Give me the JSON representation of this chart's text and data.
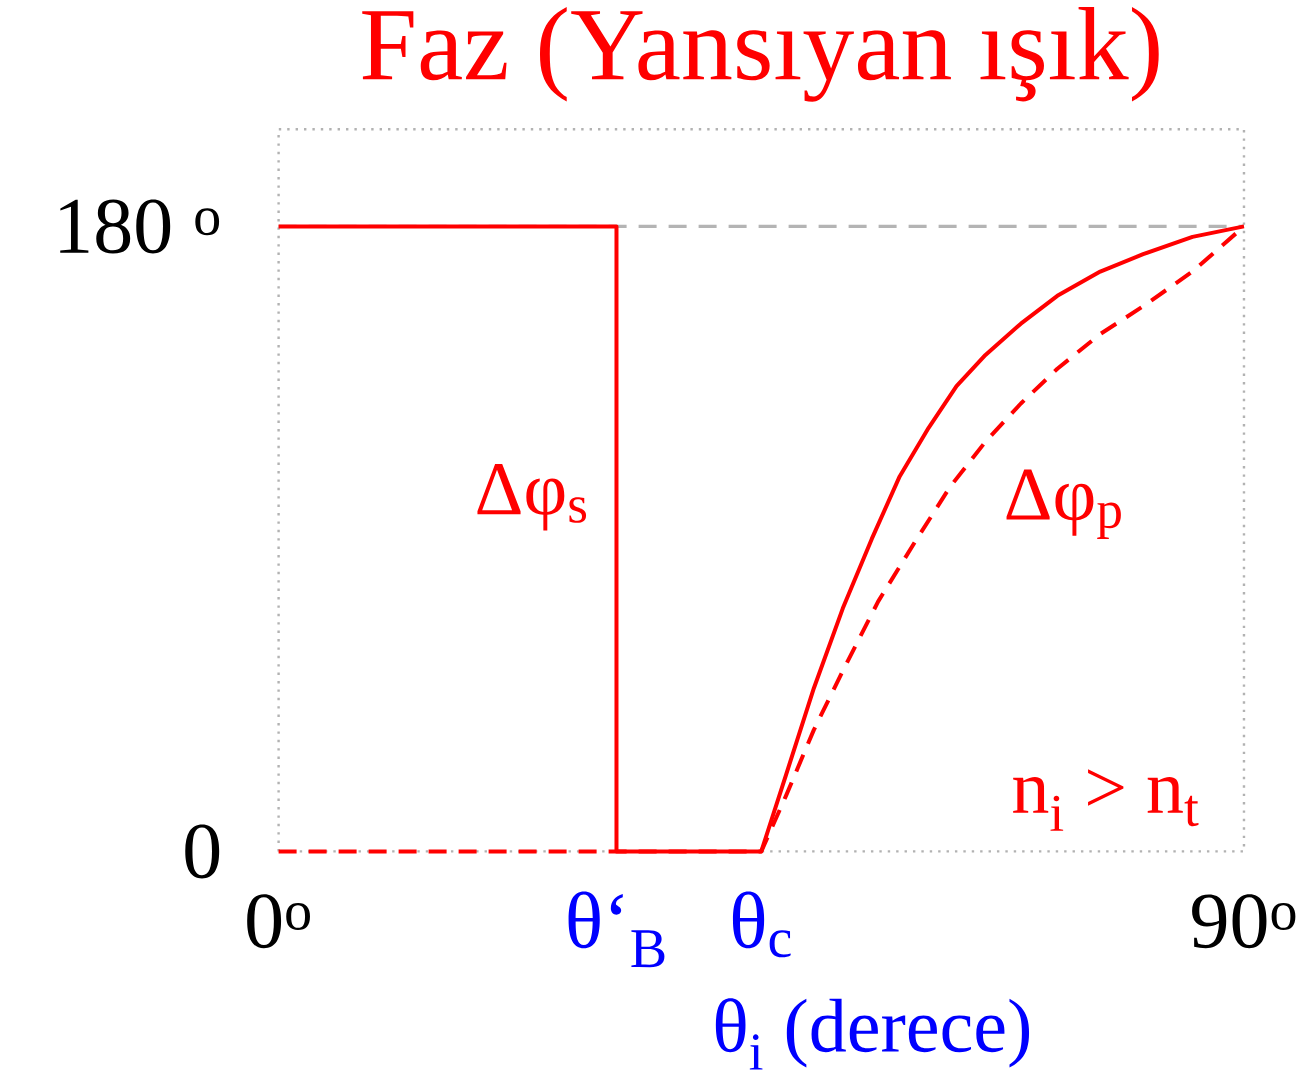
{
  "chart_data": {
    "type": "line",
    "title": "Faz (Yansıyan ışık)",
    "xlabel": "θ$_{i}$ (derece)",
    "xlim": [
      0,
      90
    ],
    "ylim": [
      0,
      208
    ],
    "xticks": [
      {
        "value": 0,
        "label": "0$^{o}$"
      },
      {
        "value": 31.5,
        "label": "θ‘$_{B}$"
      },
      {
        "value": 45,
        "label": "θ$_{c}$"
      },
      {
        "value": 90,
        "label": "90$^{o}$"
      }
    ],
    "yticks": [
      0,
      {
        "value": 180,
        "label": "180 $^{o}$"
      }
    ],
    "series": [
      {
        "color": "#ff0000",
        "line_style": "dashed",
        "x": [
          0,
          45,
          47.3,
          49.9,
          52.6,
          55.9,
          59.3,
          62.6,
          65.9,
          69.2,
          72.6,
          76.6,
          80.6,
          85.2,
          90
        ],
        "values": [
          0,
          0,
          16,
          35,
          52,
          72,
          89,
          105,
          118,
          129,
          139,
          149,
          157,
          167,
          180
        ]
      },
      {
        "color": "#ff0000",
        "line_style": "solid",
        "x": [
          0,
          31.5,
          31.5,
          45,
          47.3,
          49.9,
          52.6,
          55.3,
          57.9,
          60.6,
          63.2,
          65.9,
          69.2,
          72.6,
          76.6,
          80.6,
          85.2,
          90
        ],
        "values": [
          180,
          180,
          0,
          0,
          22,
          47,
          70,
          90,
          108,
          122,
          134,
          143,
          152,
          160,
          167,
          172,
          177,
          180
        ]
      }
    ],
    "ref_lines": [
      {
        "axis": "y",
        "value": 180,
        "color": "#b4b4b4",
        "line_style": "dashed"
      }
    ],
    "annotations": [
      "Δφ$_{s}$",
      "Δφ$_{p}$",
      "n$_{i}$ > n$_{t}$"
    ]
  }
}
